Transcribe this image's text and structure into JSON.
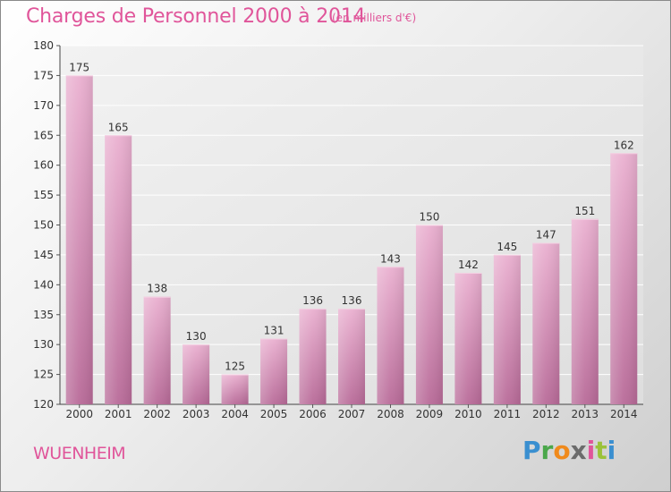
{
  "header": {
    "title": "Charges de Personnel 2000 à 2014",
    "unit": "(en milliers d'€)"
  },
  "footer": {
    "place": "WUENHEIM",
    "logo": "Proxiti"
  },
  "colors": {
    "title": "#e0559a",
    "bar_light": "#eab0d0",
    "bar_dark": "#c87aa6",
    "plot_bg": "#e8e8e8"
  },
  "chart_data": {
    "type": "bar",
    "title": "Charges de Personnel 2000 à 2014",
    "subtitle": "(en milliers d'€)",
    "xlabel": "",
    "ylabel": "",
    "categories": [
      "2000",
      "2001",
      "2002",
      "2003",
      "2004",
      "2005",
      "2006",
      "2007",
      "2008",
      "2009",
      "2010",
      "2011",
      "2012",
      "2013",
      "2014"
    ],
    "values": [
      175,
      165,
      138,
      130,
      125,
      131,
      136,
      136,
      143,
      150,
      142,
      145,
      147,
      151,
      162
    ],
    "data_labels": [
      "175",
      "165",
      "138",
      "130",
      "125",
      "131",
      "136",
      "136",
      "143",
      "150",
      "142",
      "145",
      "147",
      "151",
      "162"
    ],
    "ylim": [
      120,
      180
    ],
    "yticks": [
      120,
      125,
      130,
      135,
      140,
      145,
      150,
      155,
      160,
      165,
      170,
      175,
      180
    ],
    "grid": true,
    "legend": "none"
  }
}
